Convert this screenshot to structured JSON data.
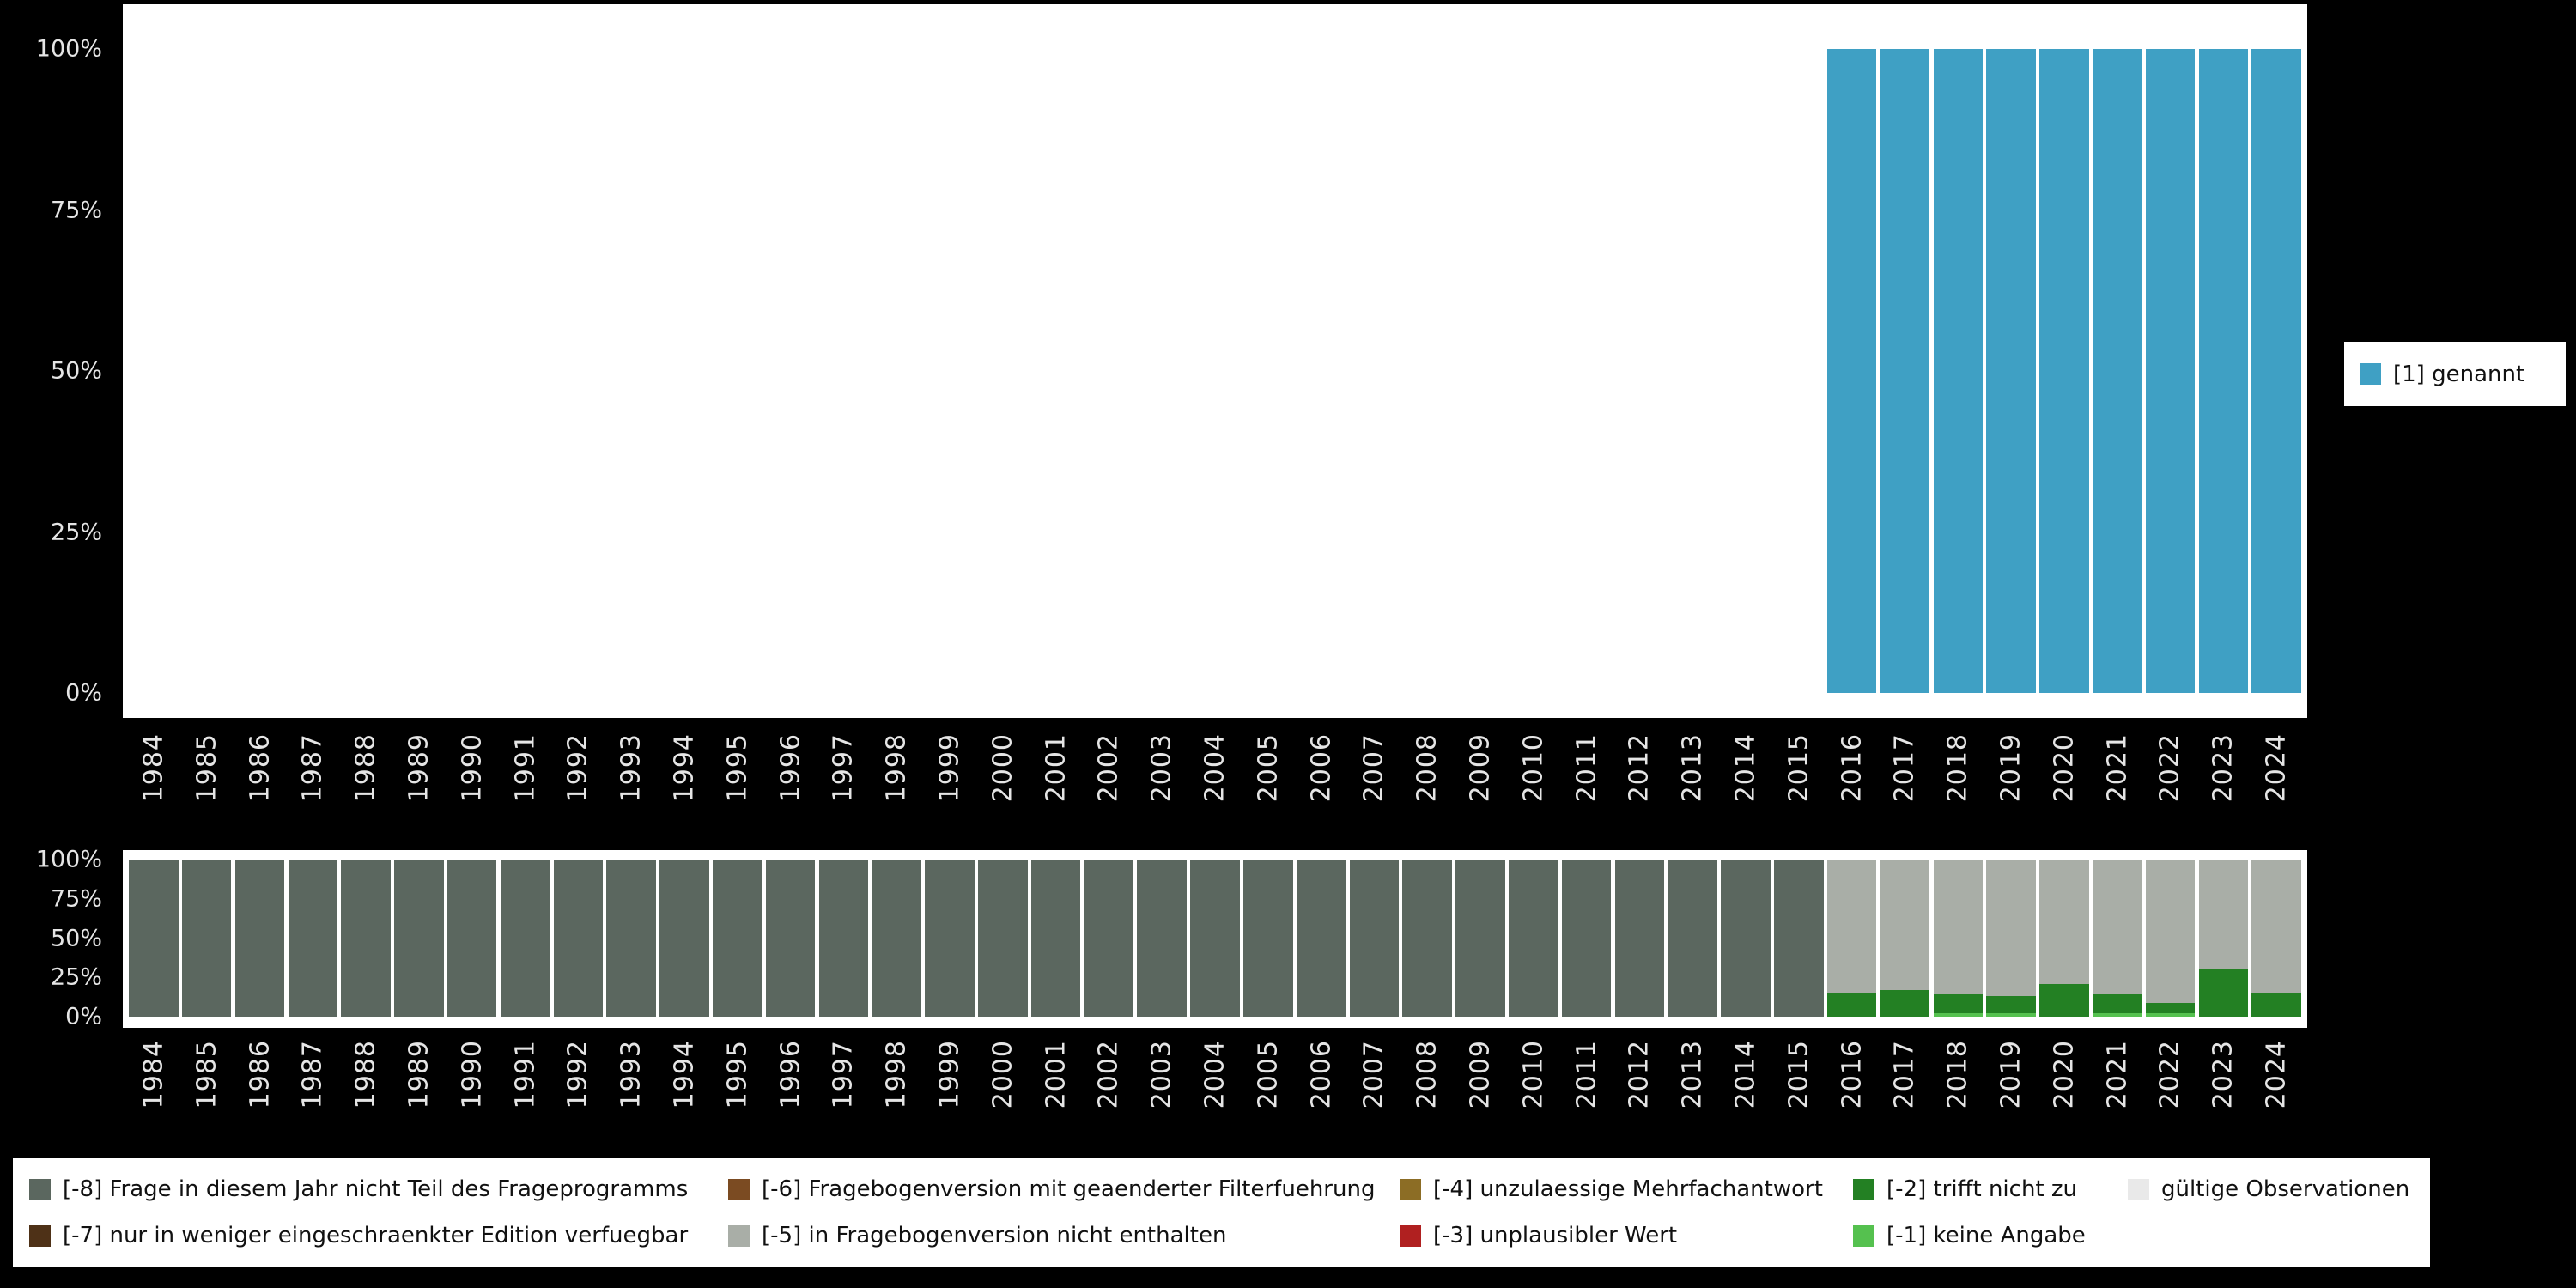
{
  "colors": {
    "background": "#000000",
    "panel": "#ffffff",
    "tick_text": "#e5e5e5",
    "legend_text": "#111111"
  },
  "chart_data": [
    {
      "id": "top",
      "type": "bar",
      "stacked": true,
      "title": "",
      "xlabel": "",
      "ylabel": "",
      "unit": "percent",
      "ylim": [
        0,
        100
      ],
      "grid": false,
      "legend_position": "right",
      "categories": [
        "1984",
        "1985",
        "1986",
        "1987",
        "1988",
        "1989",
        "1990",
        "1991",
        "1992",
        "1993",
        "1994",
        "1995",
        "1996",
        "1997",
        "1998",
        "1999",
        "2000",
        "2001",
        "2002",
        "2003",
        "2004",
        "2005",
        "2006",
        "2007",
        "2008",
        "2009",
        "2010",
        "2011",
        "2012",
        "2013",
        "2014",
        "2015",
        "2016",
        "2017",
        "2018",
        "2019",
        "2020",
        "2021",
        "2022",
        "2023",
        "2024"
      ],
      "yticks": [
        {
          "value": 100,
          "label": "100%"
        },
        {
          "value": 75,
          "label": "75%"
        },
        {
          "value": 50,
          "label": "50%"
        },
        {
          "value": 25,
          "label": "25%"
        },
        {
          "value": 0,
          "label": "0%"
        }
      ],
      "series": [
        {
          "name": "[1] genannt",
          "color": "#3fa0c4",
          "values": [
            0,
            0,
            0,
            0,
            0,
            0,
            0,
            0,
            0,
            0,
            0,
            0,
            0,
            0,
            0,
            0,
            0,
            0,
            0,
            0,
            0,
            0,
            0,
            0,
            0,
            0,
            0,
            0,
            0,
            0,
            0,
            0,
            100,
            100,
            100,
            100,
            100,
            100,
            100,
            100,
            100
          ]
        }
      ]
    },
    {
      "id": "bottom",
      "type": "bar",
      "stacked": true,
      "title": "",
      "xlabel": "",
      "ylabel": "",
      "unit": "percent",
      "ylim": [
        0,
        100
      ],
      "grid": false,
      "legend_position": "bottom",
      "categories": [
        "1984",
        "1985",
        "1986",
        "1987",
        "1988",
        "1989",
        "1990",
        "1991",
        "1992",
        "1993",
        "1994",
        "1995",
        "1996",
        "1997",
        "1998",
        "1999",
        "2000",
        "2001",
        "2002",
        "2003",
        "2004",
        "2005",
        "2006",
        "2007",
        "2008",
        "2009",
        "2010",
        "2011",
        "2012",
        "2013",
        "2014",
        "2015",
        "2016",
        "2017",
        "2018",
        "2019",
        "2020",
        "2021",
        "2022",
        "2023",
        "2024"
      ],
      "yticks": [
        {
          "value": 100,
          "label": "100%"
        },
        {
          "value": 75,
          "label": "75%"
        },
        {
          "value": 50,
          "label": "50%"
        },
        {
          "value": 25,
          "label": "25%"
        },
        {
          "value": 0,
          "label": "0%"
        }
      ],
      "series": [
        {
          "name": "[-1] keine Angabe",
          "color": "#55c14f",
          "values": [
            0,
            0,
            0,
            0,
            0,
            0,
            0,
            0,
            0,
            0,
            0,
            0,
            0,
            0,
            0,
            0,
            0,
            0,
            0,
            0,
            0,
            0,
            0,
            0,
            0,
            0,
            0,
            0,
            0,
            0,
            0,
            0,
            0,
            0,
            2,
            2,
            0,
            2,
            2,
            0,
            0
          ]
        },
        {
          "name": "[-2] trifft nicht zu",
          "color": "#238023",
          "values": [
            0,
            0,
            0,
            0,
            0,
            0,
            0,
            0,
            0,
            0,
            0,
            0,
            0,
            0,
            0,
            0,
            0,
            0,
            0,
            0,
            0,
            0,
            0,
            0,
            0,
            0,
            0,
            0,
            0,
            0,
            0,
            0,
            15,
            17,
            12,
            11,
            21,
            12,
            7,
            30,
            15
          ]
        },
        {
          "name": "[-5] in Fragebogenversion nicht enthalten",
          "color": "#a9aea7",
          "values": [
            0,
            0,
            0,
            0,
            0,
            0,
            0,
            0,
            0,
            0,
            0,
            0,
            0,
            0,
            0,
            0,
            0,
            0,
            0,
            0,
            0,
            0,
            0,
            0,
            0,
            0,
            0,
            0,
            0,
            0,
            0,
            0,
            85,
            83,
            86,
            87,
            79,
            86,
            91,
            70,
            85
          ]
        },
        {
          "name": "[-8] Frage in diesem Jahr nicht Teil des Frageprogramms",
          "color": "#5b675f",
          "values": [
            100,
            100,
            100,
            100,
            100,
            100,
            100,
            100,
            100,
            100,
            100,
            100,
            100,
            100,
            100,
            100,
            100,
            100,
            100,
            100,
            100,
            100,
            100,
            100,
            100,
            100,
            100,
            100,
            100,
            100,
            100,
            100,
            0,
            0,
            0,
            0,
            0,
            0,
            0,
            0,
            0
          ]
        }
      ]
    }
  ],
  "legends": {
    "top": {
      "items": [
        {
          "label": "[1] genannt",
          "color": "#3fa0c4"
        }
      ]
    },
    "missing": {
      "columns": [
        {
          "items": [
            {
              "label": "[-8] Frage in diesem Jahr nicht Teil des Frageprogramms",
              "color": "#5b675f"
            },
            {
              "label": "[-7] nur in weniger eingeschraenkter Edition verfuegbar",
              "color": "#4e3117"
            }
          ]
        },
        {
          "items": [
            {
              "label": "[-6] Fragebogenversion mit geaenderter Filterfuehrung",
              "color": "#7b4b22"
            },
            {
              "label": "[-5] in Fragebogenversion nicht enthalten",
              "color": "#a9aea7"
            }
          ]
        },
        {
          "items": [
            {
              "label": "[-4] unzulaessige Mehrfachantwort",
              "color": "#8c6d25"
            },
            {
              "label": "[-3] unplausibler Wert",
              "color": "#b02020"
            }
          ]
        },
        {
          "items": [
            {
              "label": "[-2] trifft nicht zu",
              "color": "#238023"
            },
            {
              "label": "[-1] keine Angabe",
              "color": "#55c14f"
            }
          ]
        },
        {
          "items": [
            {
              "label": "gültige Observationen",
              "color": "#e9e9e9"
            }
          ]
        }
      ]
    }
  }
}
